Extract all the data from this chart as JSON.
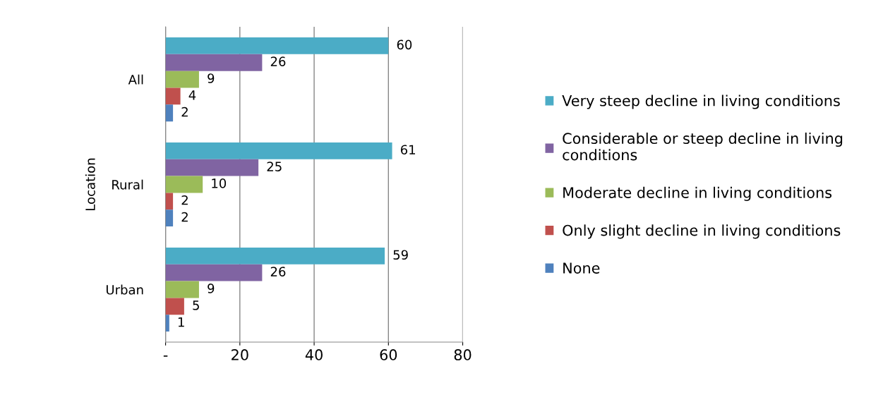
{
  "chart_data": {
    "type": "bar",
    "orientation": "horizontal",
    "ylabel": "Location",
    "categories": [
      "All",
      "Rural",
      "Urban"
    ],
    "series": [
      {
        "name": "Very steep decline in living conditions",
        "color": "#4bacc6",
        "values": [
          60,
          61,
          59
        ]
      },
      {
        "name": "Considerable or steep decline in living conditions",
        "color": "#8064a2",
        "values": [
          26,
          25,
          26
        ]
      },
      {
        "name": "Moderate decline in living conditions",
        "color": "#9bbb59",
        "values": [
          9,
          10,
          9
        ]
      },
      {
        "name": "Only slight decline in living conditions",
        "color": "#c0504d",
        "values": [
          4,
          2,
          5
        ]
      },
      {
        "name": "None",
        "color": "#4f81bd",
        "values": [
          2,
          2,
          1
        ]
      }
    ],
    "xlim": [
      0,
      80
    ],
    "xticks": [
      {
        "value": 0,
        "label": "-"
      },
      20,
      40,
      60,
      80
    ],
    "grid": "x",
    "legend": "right",
    "data_labels": true
  }
}
